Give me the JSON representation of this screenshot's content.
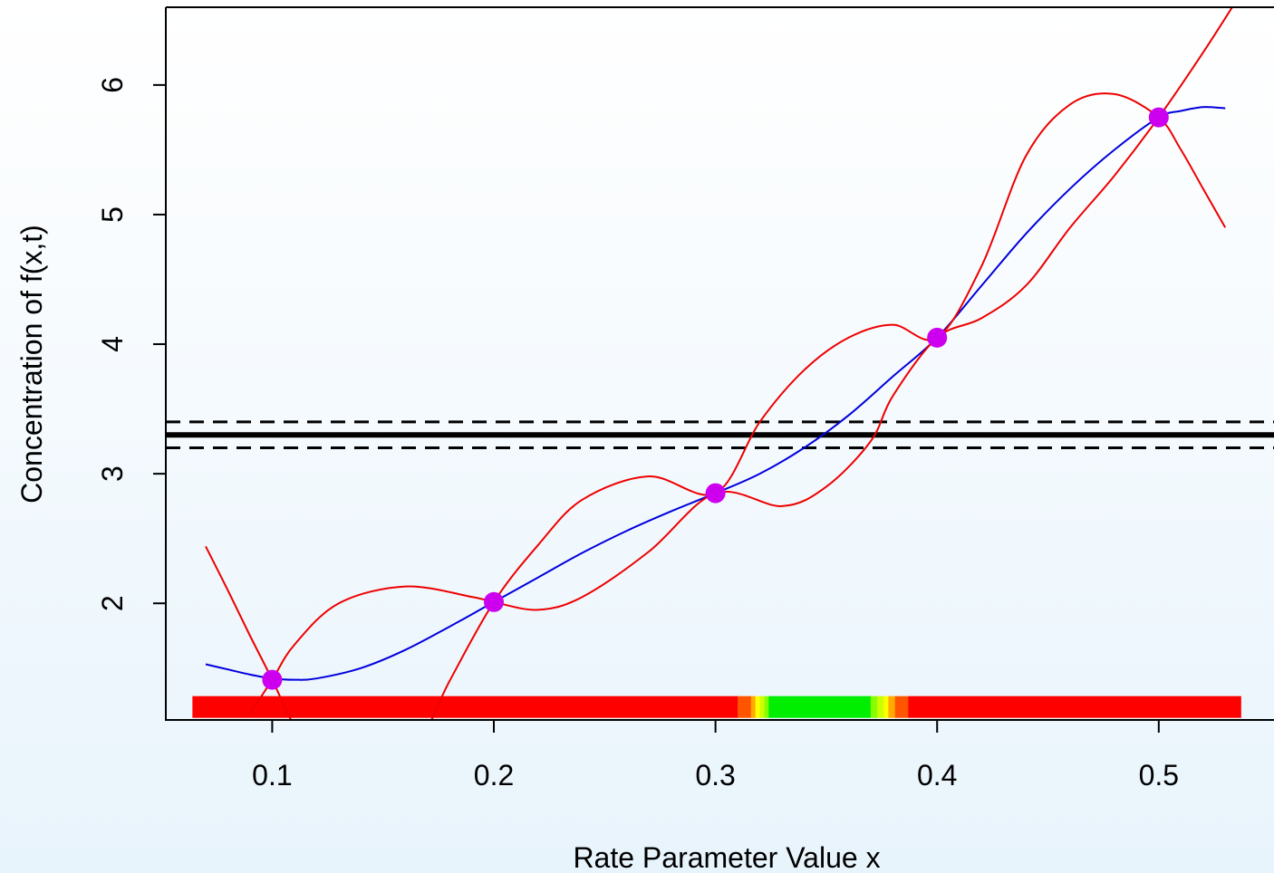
{
  "chart_data": {
    "type": "line",
    "xlabel": "Rate Parameter Value x",
    "ylabel": "Concentration of f(x,t)",
    "xlim": [
      0.052,
      0.552
    ],
    "ylim": [
      1.1,
      6.6
    ],
    "x_ticks": [
      "0.1",
      "0.2",
      "0.3",
      "0.4",
      "0.5"
    ],
    "y_ticks": [
      "2",
      "3",
      "4",
      "5",
      "6"
    ],
    "grid": false,
    "design_points": {
      "x": [
        0.1,
        0.2,
        0.3,
        0.4,
        0.5
      ],
      "y": [
        1.41,
        2.01,
        2.85,
        4.05,
        5.75
      ],
      "color": "#cc00ee"
    },
    "series": [
      {
        "color": "#0000dd",
        "x": [
          0.07,
          0.08,
          0.09,
          0.1,
          0.11,
          0.12,
          0.14,
          0.16,
          0.18,
          0.2,
          0.22,
          0.24,
          0.26,
          0.28,
          0.3,
          0.32,
          0.34,
          0.36,
          0.38,
          0.4,
          0.42,
          0.44,
          0.46,
          0.48,
          0.5,
          0.51,
          0.52,
          0.53
        ],
        "y": [
          1.53,
          1.49,
          1.45,
          1.42,
          1.41,
          1.42,
          1.5,
          1.64,
          1.82,
          2.01,
          2.2,
          2.39,
          2.56,
          2.71,
          2.85,
          3.0,
          3.2,
          3.45,
          3.75,
          4.05,
          4.45,
          4.85,
          5.2,
          5.5,
          5.75,
          5.8,
          5.83,
          5.82
        ]
      },
      {
        "color": "#ee0000",
        "x": [
          0.07,
          0.08,
          0.09,
          0.1,
          0.11,
          0.12,
          0.14,
          0.165,
          0.18,
          0.2,
          0.22,
          0.24,
          0.27,
          0.3,
          0.32,
          0.34,
          0.36,
          0.38,
          0.4,
          0.42,
          0.44,
          0.46,
          0.48,
          0.5,
          0.51,
          0.52,
          0.53
        ],
        "y": [
          2.44,
          2.1,
          1.75,
          1.41,
          1.05,
          0.8,
          0.55,
          0.9,
          1.4,
          2.01,
          2.45,
          2.8,
          2.98,
          2.85,
          3.4,
          3.8,
          4.05,
          4.15,
          4.05,
          4.6,
          5.45,
          5.85,
          5.93,
          5.75,
          5.5,
          5.2,
          4.9
        ]
      },
      {
        "color": "#ee0000",
        "x": [
          0.09,
          0.1,
          0.11,
          0.13,
          0.16,
          0.19,
          0.2,
          0.22,
          0.24,
          0.27,
          0.3,
          0.33,
          0.35,
          0.37,
          0.38,
          0.4,
          0.42,
          0.44,
          0.46,
          0.48,
          0.5,
          0.52,
          0.535
        ],
        "y": [
          1.15,
          1.41,
          1.68,
          2.0,
          2.13,
          2.05,
          2.01,
          1.95,
          2.05,
          2.4,
          2.85,
          2.75,
          2.9,
          3.25,
          3.6,
          4.05,
          4.2,
          4.45,
          4.9,
          5.3,
          5.75,
          6.25,
          6.65
        ]
      }
    ],
    "hlines": [
      {
        "y": 3.3,
        "style": "solid",
        "color": "#000000"
      },
      {
        "y": 3.4,
        "style": "dashed",
        "color": "#000000"
      },
      {
        "y": 3.2,
        "style": "dashed",
        "color": "#000000"
      }
    ],
    "implausibility_bar": {
      "y": 1.2,
      "segments": [
        {
          "x0": 0.064,
          "x1": 0.31,
          "color": "#ff0000"
        },
        {
          "x0": 0.31,
          "x1": 0.316,
          "color": "#ff5500"
        },
        {
          "x0": 0.316,
          "x1": 0.318,
          "color": "#ffaa00"
        },
        {
          "x0": 0.318,
          "x1": 0.32,
          "color": "#ffff00"
        },
        {
          "x0": 0.32,
          "x1": 0.322,
          "color": "#ccff00"
        },
        {
          "x0": 0.322,
          "x1": 0.324,
          "color": "#88ff00"
        },
        {
          "x0": 0.324,
          "x1": 0.37,
          "color": "#00ee00"
        },
        {
          "x0": 0.37,
          "x1": 0.373,
          "color": "#88ff00"
        },
        {
          "x0": 0.373,
          "x1": 0.376,
          "color": "#ccff00"
        },
        {
          "x0": 0.376,
          "x1": 0.378,
          "color": "#ffff00"
        },
        {
          "x0": 0.378,
          "x1": 0.381,
          "color": "#ffaa00"
        },
        {
          "x0": 0.381,
          "x1": 0.387,
          "color": "#ff5500"
        },
        {
          "x0": 0.387,
          "x1": 0.537,
          "color": "#ff0000"
        }
      ]
    }
  }
}
